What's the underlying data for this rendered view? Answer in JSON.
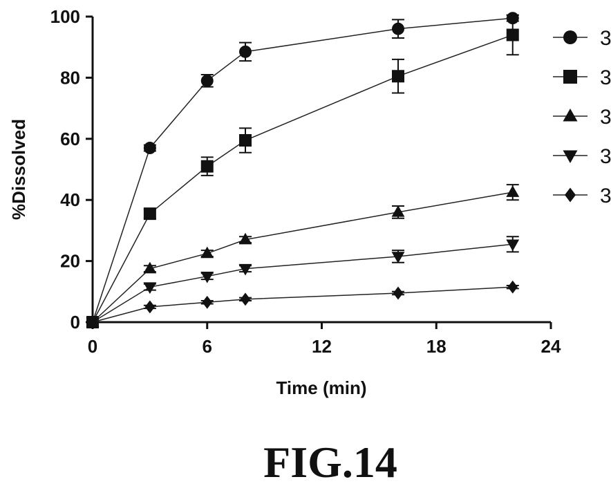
{
  "figure": {
    "caption": "FIG.14"
  },
  "chart_data": {
    "type": "line",
    "title": "",
    "xlabel": "Time (min)",
    "ylabel": "%Dissolved",
    "xlim": [
      0,
      24
    ],
    "ylim": [
      0,
      100
    ],
    "x_ticks": [
      0,
      6,
      12,
      18,
      24
    ],
    "y_ticks": [
      0,
      20,
      40,
      60,
      80,
      100
    ],
    "grid": false,
    "legend_position": "right",
    "x": [
      0,
      3,
      6,
      8,
      16,
      22
    ],
    "series": [
      {
        "name": "3",
        "marker": "circle",
        "values": [
          0,
          57,
          79,
          88.5,
          96,
          99.5
        ],
        "errors": [
          0,
          1,
          2,
          3,
          3,
          1
        ]
      },
      {
        "name": "3",
        "marker": "square",
        "values": [
          0,
          35.5,
          51,
          59.5,
          80.5,
          94
        ],
        "errors": [
          0,
          1.5,
          3,
          4,
          5.5,
          6.5
        ]
      },
      {
        "name": "3",
        "marker": "triangle-up",
        "values": [
          0,
          17.5,
          22.5,
          27,
          36,
          42.5
        ],
        "errors": [
          0,
          1,
          1,
          1,
          2,
          2.5
        ]
      },
      {
        "name": "3",
        "marker": "triangle-down",
        "values": [
          0,
          11.5,
          15,
          17.5,
          21.5,
          25.5
        ],
        "errors": [
          0,
          1,
          1,
          1,
          2,
          2.5
        ]
      },
      {
        "name": "3",
        "marker": "diamond",
        "values": [
          0,
          5,
          6.5,
          7.5,
          9.5,
          11.5
        ],
        "errors": [
          0,
          0.5,
          0.5,
          0.5,
          0.5,
          0.5
        ]
      }
    ]
  }
}
